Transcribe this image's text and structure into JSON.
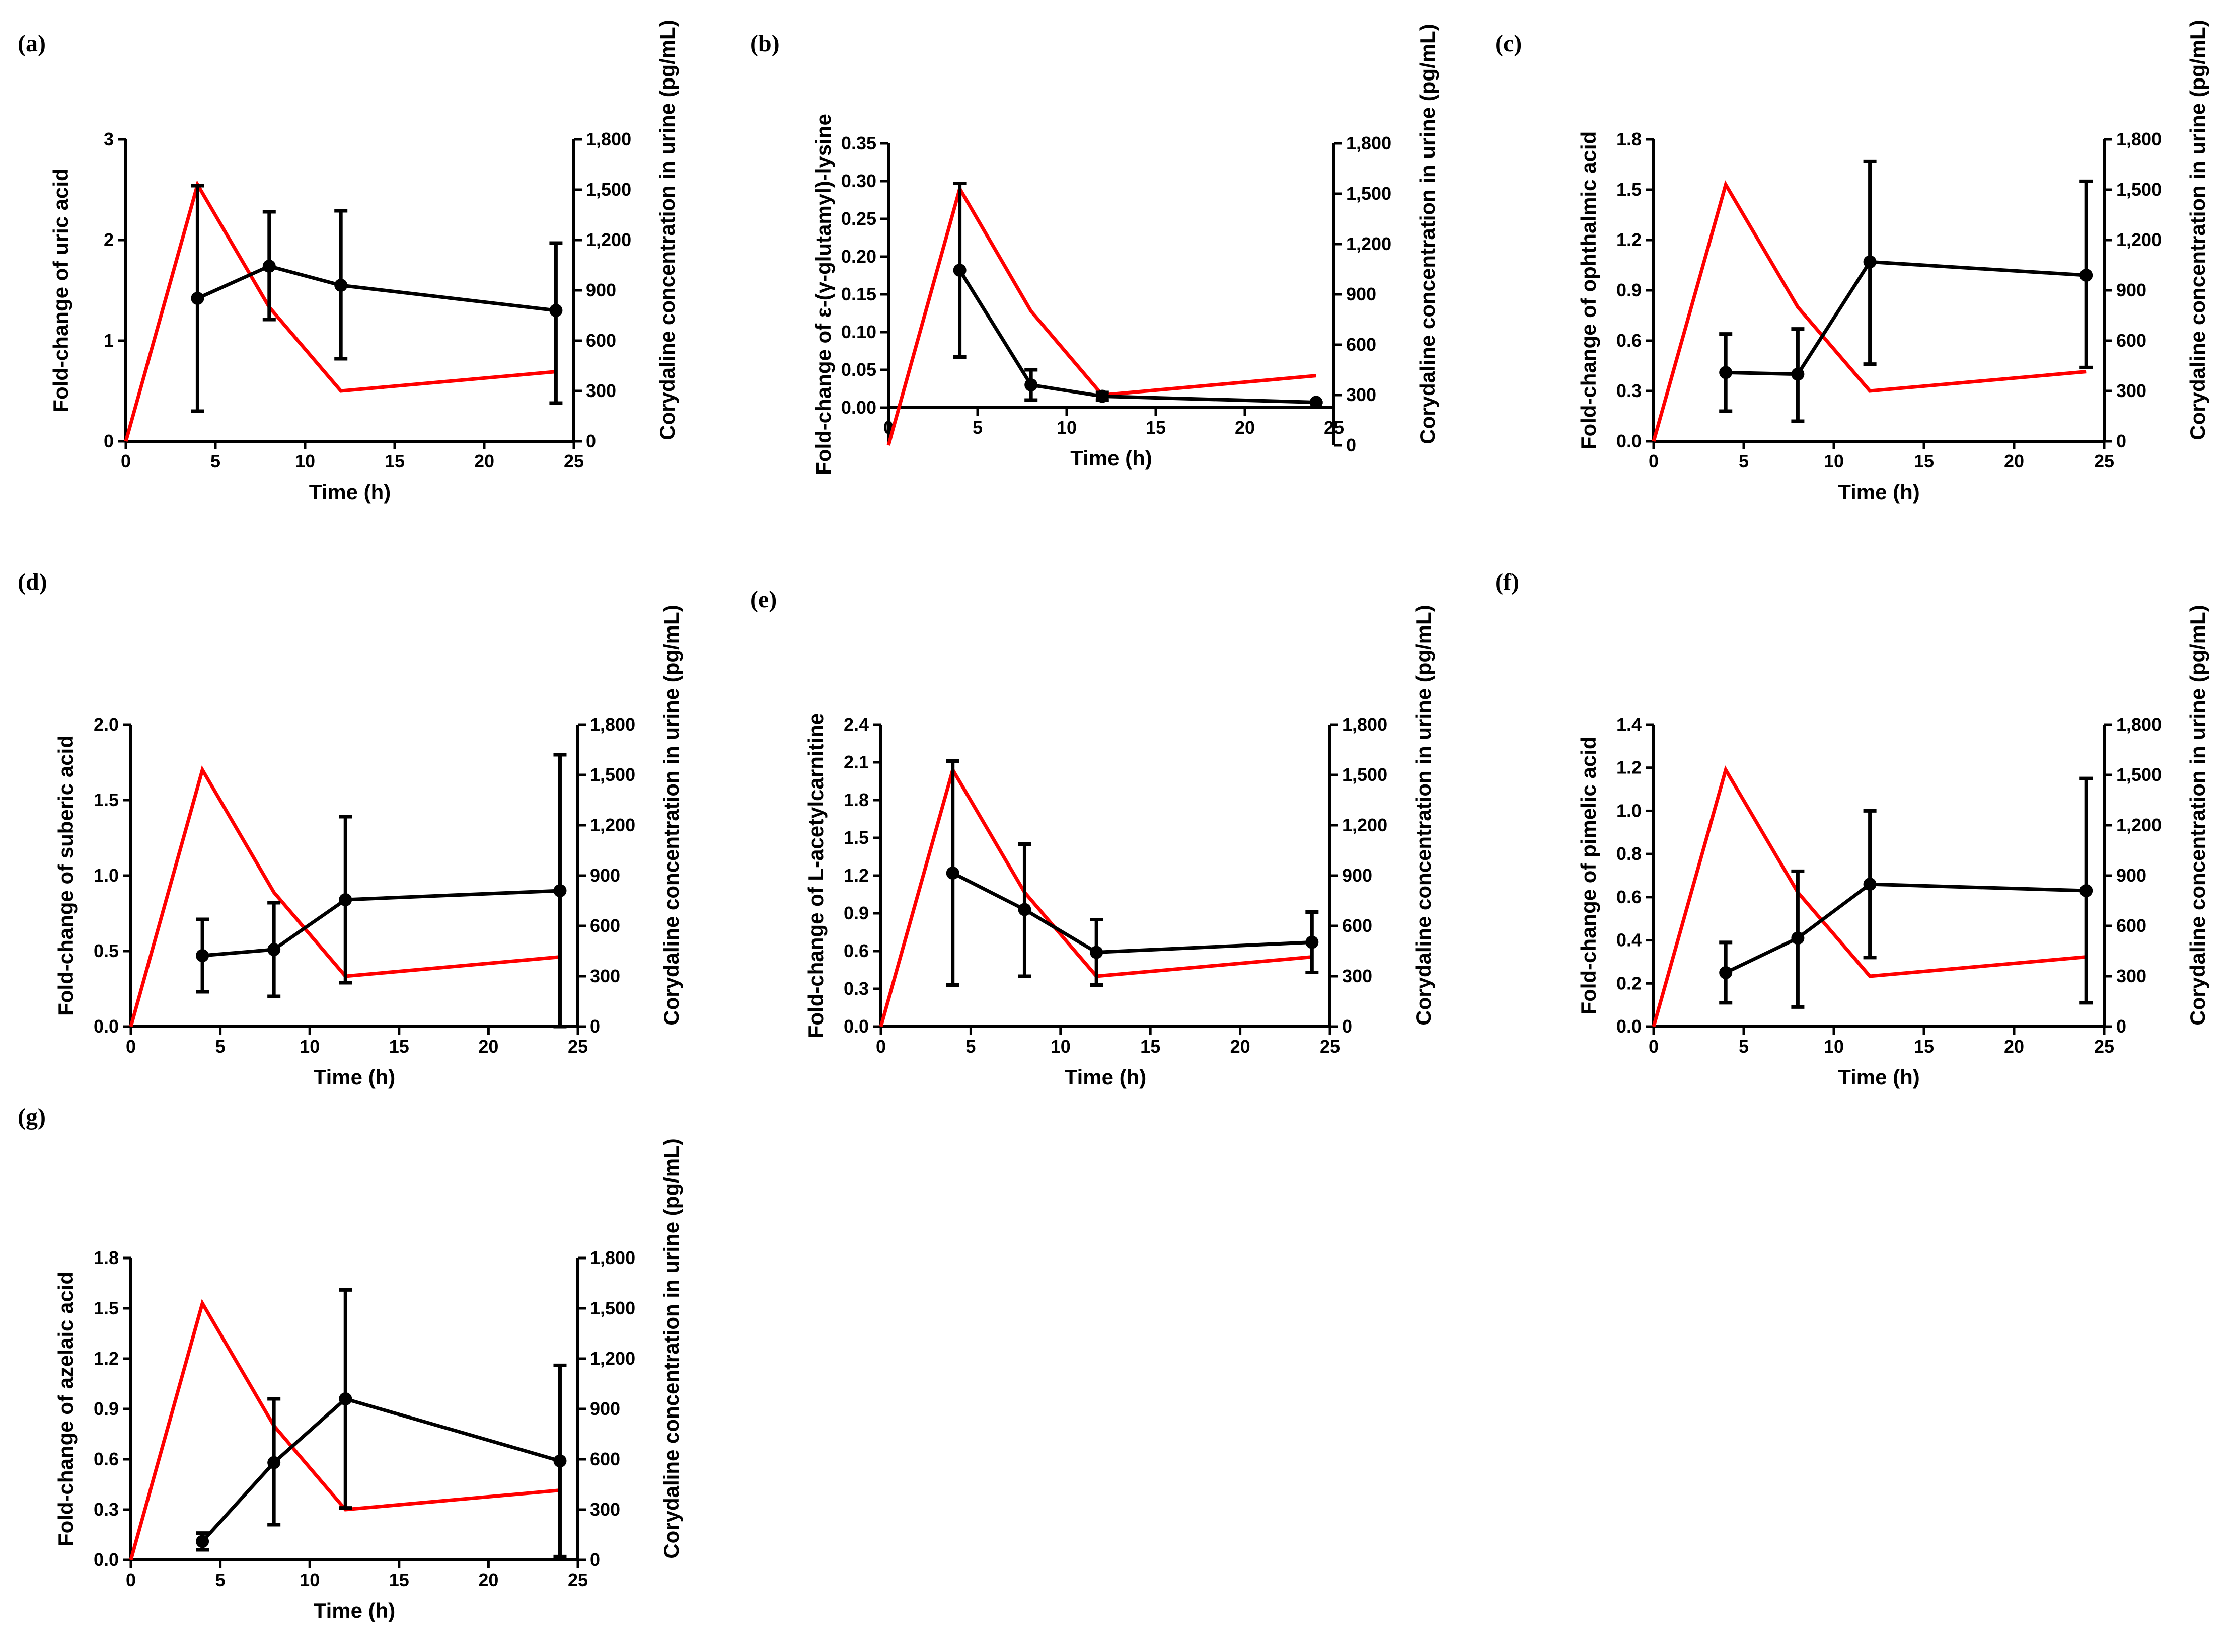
{
  "chart_data": [
    {
      "panel": "(a)",
      "type": "line",
      "x": [
        0,
        4,
        8,
        12,
        24
      ],
      "xlabel": "Time (h)",
      "xlim": [
        0,
        25
      ],
      "xticks": [
        "0",
        "5",
        "10",
        "15",
        "20",
        "25"
      ],
      "ylabel": "Fold-change of uric acid",
      "ylim": [
        0,
        3
      ],
      "yticks": [
        "0",
        "1",
        "2",
        "3"
      ],
      "y2label": "Corydaline concentration in urine (pg/mL)",
      "y2lim": [
        0,
        1800
      ],
      "y2ticks": [
        "0",
        "300",
        "600",
        "900",
        "1,200",
        "1,500",
        "1,800"
      ],
      "series": [
        {
          "name": "Fold-change of uric acid",
          "color": "#000000",
          "axis": "left",
          "x": [
            4,
            8,
            12,
            24
          ],
          "values": [
            1.42,
            1.74,
            1.55,
            1.3
          ],
          "err_lo": [
            0.3,
            1.21,
            0.82,
            0.38
          ],
          "err_hi": [
            2.54,
            2.28,
            2.29,
            1.97
          ]
        },
        {
          "name": "Corydaline concentration in urine",
          "color": "#ff0000",
          "axis": "right",
          "x": [
            0,
            4,
            8,
            12,
            24
          ],
          "values": [
            0,
            1530,
            800,
            300,
            415
          ]
        }
      ]
    },
    {
      "panel": "(b)",
      "type": "line",
      "x": [
        0,
        4,
        8,
        12,
        24
      ],
      "xlabel": "Time (h)",
      "xlim": [
        0,
        25
      ],
      "xticks": [
        "0",
        "5",
        "10",
        "15",
        "20",
        "25"
      ],
      "ylabel": "Fold-change of ε-(γ-glutamyl)-lysine",
      "ylim": [
        -0.05,
        0.35
      ],
      "yticks": [
        "0.00",
        "0.05",
        "0.10",
        "0.15",
        "0.20",
        "0.25",
        "0.30",
        "0.35"
      ],
      "y2label": "Corydaline concentration in urine (pg/mL)",
      "y2lim": [
        0,
        1800
      ],
      "y2ticks": [
        "0",
        "300",
        "600",
        "900",
        "1,200",
        "1,500",
        "1,800"
      ],
      "series": [
        {
          "name": "Fold-change of ε-(γ-glutamyl)-lysine",
          "color": "#000000",
          "axis": "left",
          "x": [
            4,
            8,
            12,
            24
          ],
          "values": [
            0.182,
            0.03,
            0.015,
            0.007
          ],
          "err_lo": [
            0.067,
            0.01,
            0.01,
            0.007
          ],
          "err_hi": [
            0.297,
            0.05,
            0.02,
            0.007
          ]
        },
        {
          "name": "Corydaline concentration in urine",
          "color": "#ff0000",
          "axis": "right",
          "x": [
            0,
            4,
            8,
            12,
            24
          ],
          "values": [
            0,
            1530,
            800,
            300,
            415
          ]
        }
      ]
    },
    {
      "panel": "(c)",
      "type": "line",
      "x": [
        0,
        4,
        8,
        12,
        24
      ],
      "xlabel": "Time (h)",
      "xlim": [
        0,
        25
      ],
      "xticks": [
        "0",
        "5",
        "10",
        "15",
        "20",
        "25"
      ],
      "ylabel": "Fold-change of ophthalmic acid",
      "ylim": [
        0,
        1.8
      ],
      "yticks": [
        "0.0",
        "0.3",
        "0.6",
        "0.9",
        "1.2",
        "1.5",
        "1.8"
      ],
      "y2label": "Corydaline concentration in urine (pg/mL)",
      "y2lim": [
        0,
        1800
      ],
      "y2ticks": [
        "0",
        "300",
        "600",
        "900",
        "1,200",
        "1,500",
        "1,800"
      ],
      "series": [
        {
          "name": "Fold-change of ophthalmic acid",
          "color": "#000000",
          "axis": "left",
          "x": [
            4,
            8,
            12,
            24
          ],
          "values": [
            0.41,
            0.4,
            1.07,
            0.99
          ],
          "err_lo": [
            0.18,
            0.12,
            0.46,
            0.44
          ],
          "err_hi": [
            0.64,
            0.67,
            1.67,
            1.55
          ]
        },
        {
          "name": "Corydaline concentration in urine",
          "color": "#ff0000",
          "axis": "right",
          "x": [
            0,
            4,
            8,
            12,
            24
          ],
          "values": [
            0,
            1530,
            800,
            300,
            415
          ]
        }
      ]
    },
    {
      "panel": "(d)",
      "type": "line",
      "x": [
        0,
        4,
        8,
        12,
        24
      ],
      "xlabel": "Time (h)",
      "xlim": [
        0,
        25
      ],
      "xticks": [
        "0",
        "5",
        "10",
        "15",
        "20",
        "25"
      ],
      "ylabel": "Fold-change of suberic acid",
      "ylim": [
        0,
        2.0
      ],
      "yticks": [
        "0.0",
        "0.5",
        "1.0",
        "1.5",
        "2.0"
      ],
      "y2label": "Corydaline concentration in urine (pg/mL)",
      "y2lim": [
        0,
        1800
      ],
      "y2ticks": [
        "0",
        "300",
        "600",
        "900",
        "1,200",
        "1,500",
        "1,800"
      ],
      "series": [
        {
          "name": "Fold-change of suberic acid",
          "color": "#000000",
          "axis": "left",
          "x": [
            4,
            8,
            12,
            24
          ],
          "values": [
            0.47,
            0.51,
            0.84,
            0.9
          ],
          "err_lo": [
            0.23,
            0.2,
            0.29,
            0.0
          ],
          "err_hi": [
            0.71,
            0.82,
            1.39,
            1.8
          ]
        },
        {
          "name": "Corydaline concentration in urine",
          "color": "#ff0000",
          "axis": "right",
          "x": [
            0,
            4,
            8,
            12,
            24
          ],
          "values": [
            0,
            1530,
            800,
            300,
            415
          ]
        }
      ]
    },
    {
      "panel": "(e)",
      "type": "line",
      "x": [
        0,
        4,
        8,
        12,
        24
      ],
      "xlabel": "Time (h)",
      "xlim": [
        0,
        25
      ],
      "xticks": [
        "0",
        "5",
        "10",
        "15",
        "20",
        "25"
      ],
      "ylabel": "Fold-change of L-acetylcarnitine",
      "ylim": [
        0,
        2.4
      ],
      "yticks": [
        "0.0",
        "0.3",
        "0.6",
        "0.9",
        "1.2",
        "1.5",
        "1.8",
        "2.1",
        "2.4"
      ],
      "y2label": "Corydaline concentration in urine (pg/mL)",
      "y2lim": [
        0,
        1800
      ],
      "y2ticks": [
        "0",
        "300",
        "600",
        "900",
        "1,200",
        "1,500",
        "1,800"
      ],
      "series": [
        {
          "name": "Fold-change of L-acetylcarnitine",
          "color": "#000000",
          "axis": "left",
          "x": [
            4,
            8,
            12,
            24
          ],
          "values": [
            1.22,
            0.93,
            0.59,
            0.67
          ],
          "err_lo": [
            0.33,
            0.4,
            0.33,
            0.43
          ],
          "err_hi": [
            2.11,
            1.45,
            0.85,
            0.91
          ]
        },
        {
          "name": "Corydaline concentration in urine",
          "color": "#ff0000",
          "axis": "right",
          "x": [
            0,
            4,
            8,
            12,
            24
          ],
          "values": [
            0,
            1530,
            800,
            300,
            415
          ]
        }
      ]
    },
    {
      "panel": "(f)",
      "type": "line",
      "x": [
        0,
        4,
        8,
        12,
        24
      ],
      "xlabel": "Time (h)",
      "xlim": [
        0,
        25
      ],
      "xticks": [
        "0",
        "5",
        "10",
        "15",
        "20",
        "25"
      ],
      "ylabel": "Fold-change of pimelic acid",
      "ylim": [
        0,
        1.4
      ],
      "yticks": [
        "0.0",
        "0.2",
        "0.4",
        "0.6",
        "0.8",
        "1.0",
        "1.2",
        "1.4"
      ],
      "y2label": "Corydaline concentration in urine (pg/mL)",
      "y2lim": [
        0,
        1800
      ],
      "y2ticks": [
        "0",
        "300",
        "600",
        "900",
        "1,200",
        "1,500",
        "1,800"
      ],
      "series": [
        {
          "name": "Fold-change of pimelic acid",
          "color": "#000000",
          "axis": "left",
          "x": [
            4,
            8,
            12,
            24
          ],
          "values": [
            0.25,
            0.41,
            0.66,
            0.63
          ],
          "err_lo": [
            0.11,
            0.09,
            0.32,
            0.11
          ],
          "err_hi": [
            0.39,
            0.72,
            1.0,
            1.15
          ]
        },
        {
          "name": "Corydaline concentration in urine",
          "color": "#ff0000",
          "axis": "right",
          "x": [
            0,
            4,
            8,
            12,
            24
          ],
          "values": [
            0,
            1530,
            800,
            300,
            415
          ]
        }
      ]
    },
    {
      "panel": "(g)",
      "type": "line",
      "x": [
        0,
        4,
        8,
        12,
        24
      ],
      "xlabel": "Time (h)",
      "xlim": [
        0,
        25
      ],
      "xticks": [
        "0",
        "5",
        "10",
        "15",
        "20",
        "25"
      ],
      "ylabel": "Fold-change of azelaic acid",
      "ylim": [
        0,
        1.8
      ],
      "yticks": [
        "0.0",
        "0.3",
        "0.6",
        "0.9",
        "1.2",
        "1.5",
        "1.8"
      ],
      "y2label": "Corydaline concentration in urine (pg/mL)",
      "y2lim": [
        0,
        1800
      ],
      "y2ticks": [
        "0",
        "300",
        "600",
        "900",
        "1,200",
        "1,500",
        "1,800"
      ],
      "series": [
        {
          "name": "Fold-change of azelaic acid",
          "color": "#000000",
          "axis": "left",
          "x": [
            4,
            8,
            12,
            24
          ],
          "values": [
            0.11,
            0.58,
            0.96,
            0.59
          ],
          "err_lo": [
            0.06,
            0.21,
            0.31,
            0.02
          ],
          "err_hi": [
            0.16,
            0.96,
            1.61,
            1.16
          ]
        },
        {
          "name": "Corydaline concentration in urine",
          "color": "#ff0000",
          "axis": "right",
          "x": [
            0,
            4,
            8,
            12,
            24
          ],
          "values": [
            0,
            1530,
            800,
            300,
            415
          ]
        }
      ]
    }
  ]
}
